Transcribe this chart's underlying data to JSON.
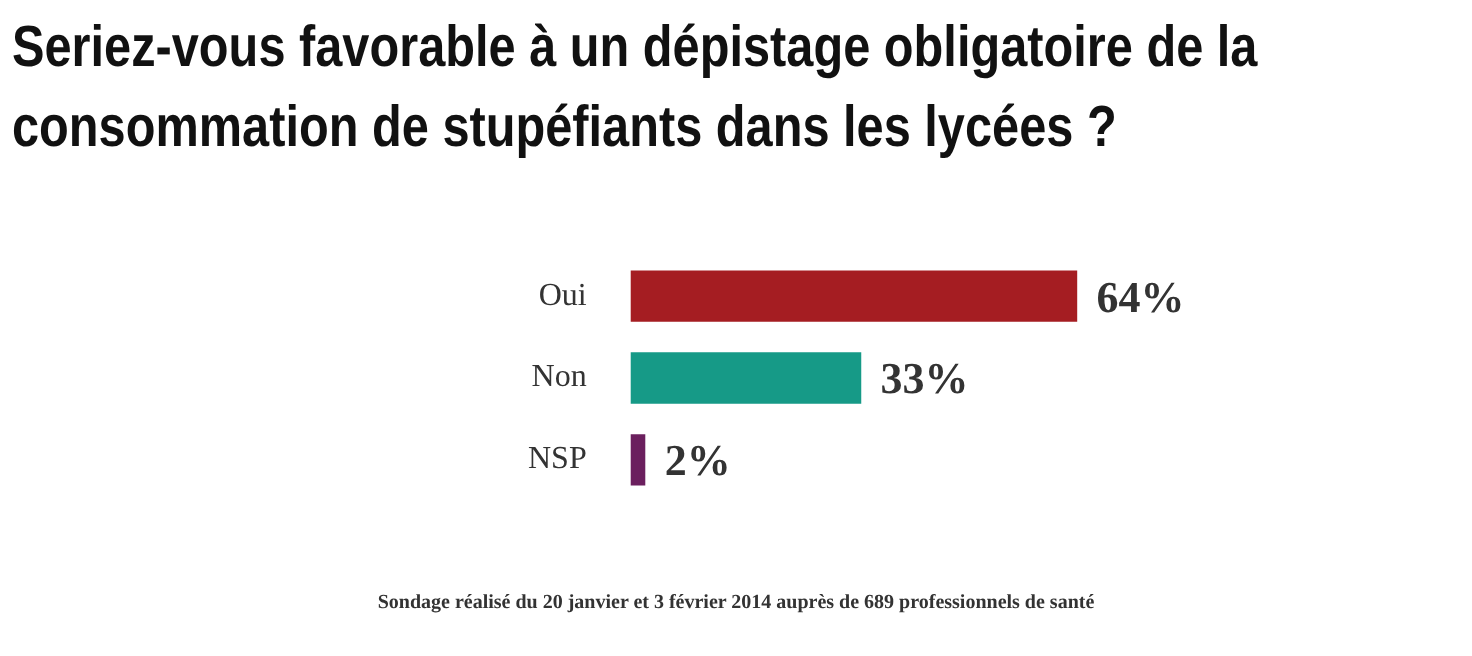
{
  "chart_data": {
    "type": "bar",
    "orientation": "horizontal",
    "title": "Seriez-vous favorable à un dépistage obligatoire de la consommation de stupéfiants dans les lycées ?",
    "categories": [
      "Oui",
      "Non",
      "NSP"
    ],
    "values": [
      64,
      33,
      2
    ],
    "colors": [
      "#a51d22",
      "#169a87",
      "#6b1f5e"
    ],
    "value_labels": [
      "64%",
      "33%",
      "2%"
    ],
    "legend": false,
    "tick_labels": "y",
    "annotations": [
      "Sondage réalisé du 20 janvier et 3 février 2014 auprès de 689 professionnels de santé"
    ]
  }
}
